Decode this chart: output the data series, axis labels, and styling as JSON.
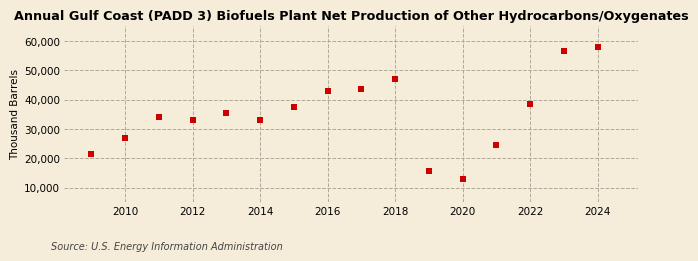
{
  "title": "Annual Gulf Coast (PADD 3) Biofuels Plant Net Production of Other Hydrocarbons/Oxygenates",
  "ylabel": "Thousand Barrels",
  "source": "Source: U.S. Energy Information Administration",
  "background_color": "#f5edda",
  "years": [
    2009,
    2010,
    2011,
    2012,
    2013,
    2014,
    2015,
    2016,
    2017,
    2018,
    2019,
    2020,
    2021,
    2022,
    2023,
    2024
  ],
  "values": [
    21500,
    27000,
    34000,
    33000,
    35500,
    33000,
    37500,
    43000,
    43500,
    47000,
    15500,
    12800,
    24500,
    38500,
    56500,
    58000
  ],
  "marker_color": "#cc0000",
  "marker": "s",
  "marker_size": 4,
  "ylim": [
    5000,
    65000
  ],
  "yticks": [
    10000,
    20000,
    30000,
    40000,
    50000,
    60000
  ],
  "ytick_labels": [
    "10,000",
    "20,000",
    "30,000",
    "40,000",
    "50,000",
    "60,000"
  ],
  "xticks": [
    2010,
    2012,
    2014,
    2016,
    2018,
    2020,
    2022,
    2024
  ],
  "xlim": [
    2008.2,
    2025.2
  ],
  "grid_color": "#b0a898",
  "title_fontsize": 9.2,
  "axis_fontsize": 7.5,
  "ylabel_fontsize": 7.5,
  "source_fontsize": 7.0
}
